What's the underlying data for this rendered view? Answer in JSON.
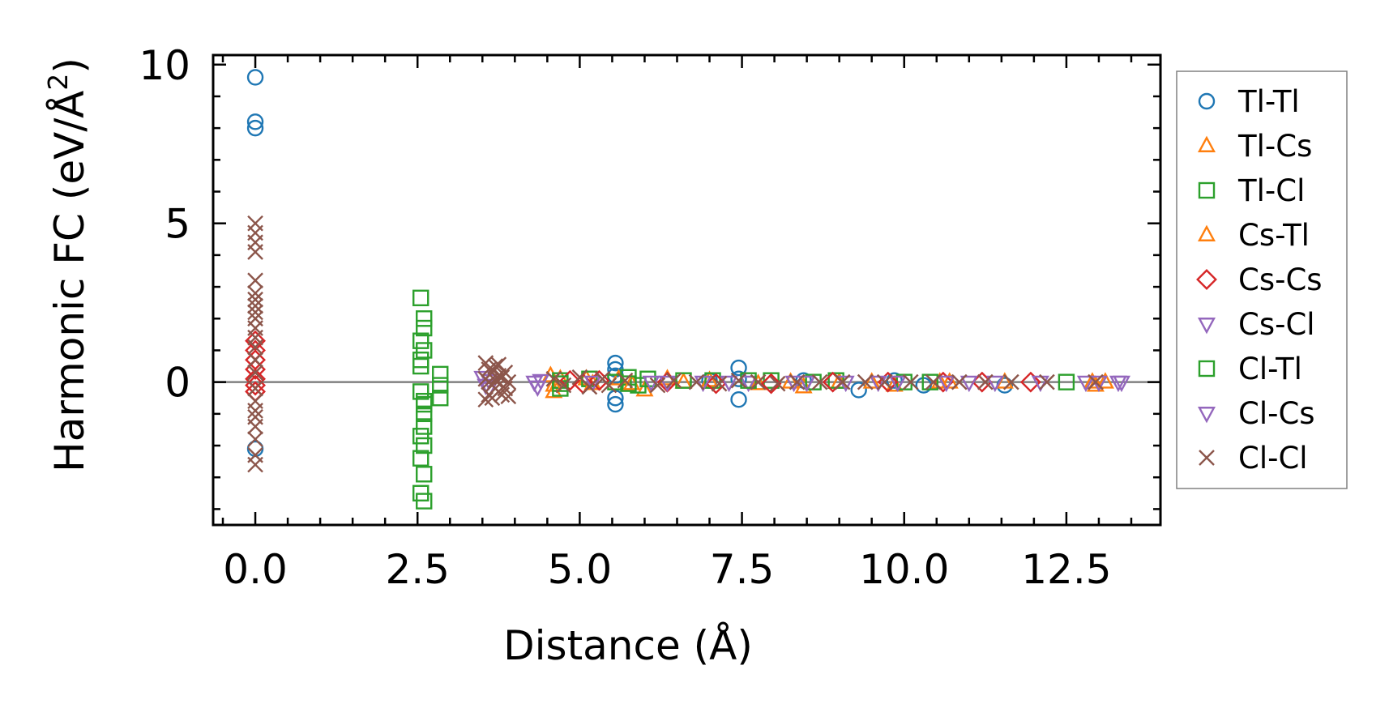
{
  "chart_data": {
    "type": "scatter",
    "xlabel": "Distance (Å)",
    "ylabel": "Harmonic FC (eV/Å²)",
    "ylabel_main": "Harmonic FC (eV/Å",
    "ylabel_sup": "2",
    "ylabel_end": ")",
    "xlim": [
      -0.65,
      13.95
    ],
    "ylim": [
      -4.5,
      10.3
    ],
    "xticks": [
      0.0,
      2.5,
      5.0,
      7.5,
      10.0,
      12.5
    ],
    "xtick_labels": [
      "0.0",
      "2.5",
      "5.0",
      "7.5",
      "10.0",
      "12.5"
    ],
    "yticks": [
      0,
      5,
      10
    ],
    "ytick_labels": [
      "0",
      "5",
      "10"
    ],
    "zero_line": true,
    "grid": false,
    "legend_position": "outside right",
    "series": [
      {
        "name": "Tl-Tl",
        "marker": "circle",
        "color": "#1f77b4",
        "points": [
          [
            0,
            9.6
          ],
          [
            0,
            8.2
          ],
          [
            0,
            8.0
          ],
          [
            0,
            -2.1
          ],
          [
            5.55,
            0.6
          ],
          [
            5.55,
            0.4
          ],
          [
            5.55,
            0.2
          ],
          [
            5.55,
            -0.5
          ],
          [
            5.55,
            -0.7
          ],
          [
            7.45,
            0.45
          ],
          [
            7.45,
            0.1
          ],
          [
            7.45,
            -0.55
          ],
          [
            7.0,
            0.05
          ],
          [
            8.45,
            0.05
          ],
          [
            9.3,
            -0.25
          ],
          [
            9.85,
            0.05
          ],
          [
            10.3,
            -0.1
          ],
          [
            11.55,
            -0.1
          ]
        ]
      },
      {
        "name": "Tl-Cs",
        "marker": "triangle-up",
        "color": "#ff7f0e",
        "points": [
          [
            4.55,
            0.2
          ],
          [
            4.6,
            -0.3
          ],
          [
            4.7,
            0.1
          ],
          [
            5.1,
            0.1
          ],
          [
            5.6,
            0.1
          ],
          [
            6.0,
            -0.25
          ],
          [
            6.35,
            0.1
          ],
          [
            7.0,
            0.05
          ],
          [
            7.75,
            -0.05
          ],
          [
            8.45,
            -0.15
          ],
          [
            9.0,
            0.0
          ],
          [
            9.85,
            -0.1
          ],
          [
            10.55,
            0.0
          ],
          [
            11.55,
            0.0
          ],
          [
            12.95,
            -0.1
          ],
          [
            13.1,
            0.0
          ]
        ]
      },
      {
        "name": "Tl-Cl",
        "marker": "square",
        "color": "#2ca02c",
        "points": [
          [
            2.55,
            2.65
          ],
          [
            2.6,
            2.0
          ],
          [
            2.6,
            1.7
          ],
          [
            2.55,
            1.3
          ],
          [
            2.6,
            1.0
          ],
          [
            2.55,
            0.7
          ],
          [
            2.55,
            -0.3
          ],
          [
            2.6,
            -0.7
          ],
          [
            2.6,
            -1.0
          ],
          [
            2.6,
            -1.4
          ],
          [
            2.55,
            -1.7
          ],
          [
            2.6,
            -2.0
          ],
          [
            2.55,
            -2.4
          ],
          [
            2.6,
            -2.9
          ],
          [
            2.55,
            -3.5
          ],
          [
            2.6,
            -3.75
          ],
          [
            2.85,
            0.25
          ],
          [
            2.85,
            -0.1
          ],
          [
            2.85,
            -0.5
          ],
          [
            4.7,
            0.05
          ],
          [
            4.7,
            -0.2
          ],
          [
            5.15,
            0.1
          ],
          [
            5.55,
            0.0
          ],
          [
            5.75,
            0.15
          ],
          [
            5.9,
            -0.1
          ],
          [
            6.05,
            0.1
          ],
          [
            7.05,
            0.05
          ],
          [
            7.95,
            0.05
          ],
          [
            8.95,
            0.05
          ],
          [
            10.0,
            0.0
          ],
          [
            12.5,
            0.0
          ]
        ]
      },
      {
        "name": "Cs-Tl",
        "marker": "triangle-up",
        "color": "#ff7f0e",
        "points": [
          [
            4.6,
            -0.1
          ],
          [
            5.2,
            -0.05
          ],
          [
            5.8,
            -0.05
          ],
          [
            6.6,
            0.0
          ],
          [
            8.25,
            0.0
          ],
          [
            9.5,
            0.0
          ],
          [
            10.7,
            0.0
          ],
          [
            12.9,
            0.0
          ]
        ]
      },
      {
        "name": "Cs-Cs",
        "marker": "diamond",
        "color": "#d62728",
        "points": [
          [
            0,
            1.3
          ],
          [
            0,
            1.0
          ],
          [
            0,
            0.7
          ],
          [
            0,
            0.4
          ],
          [
            0,
            0.1
          ],
          [
            0,
            -0.1
          ],
          [
            0,
            -0.3
          ],
          [
            4.85,
            0.05
          ],
          [
            5.05,
            -0.05
          ],
          [
            5.3,
            0.05
          ],
          [
            6.35,
            0.0
          ],
          [
            7.1,
            -0.05
          ],
          [
            7.95,
            -0.05
          ],
          [
            8.9,
            0.0
          ],
          [
            9.75,
            0.0
          ],
          [
            10.6,
            0.0
          ],
          [
            11.2,
            0.0
          ],
          [
            11.95,
            0.0
          ]
        ]
      },
      {
        "name": "Cs-Cl",
        "marker": "triangle-down",
        "color": "#9467bd",
        "points": [
          [
            3.5,
            0.15
          ],
          [
            3.55,
            -0.1
          ],
          [
            3.6,
            0.05
          ],
          [
            4.3,
            0.0
          ],
          [
            4.35,
            -0.15
          ],
          [
            6.35,
            0.0
          ],
          [
            6.9,
            0.0
          ],
          [
            7.6,
            0.0
          ],
          [
            8.3,
            0.0
          ],
          [
            9.1,
            0.0
          ],
          [
            9.9,
            0.0
          ],
          [
            10.65,
            0.0
          ],
          [
            11.4,
            0.0
          ],
          [
            12.1,
            0.0
          ],
          [
            13.0,
            0.0
          ],
          [
            13.35,
            0.0
          ]
        ]
      },
      {
        "name": "Cl-Tl",
        "marker": "square",
        "color": "#2ca02c",
        "points": [
          [
            2.55,
            0.5
          ],
          [
            2.6,
            -0.6
          ],
          [
            4.7,
            -0.05
          ],
          [
            5.75,
            -0.05
          ],
          [
            6.6,
            0.05
          ],
          [
            7.6,
            0.05
          ],
          [
            8.6,
            0.0
          ],
          [
            10.4,
            0.0
          ]
        ]
      },
      {
        "name": "Cl-Cs",
        "marker": "triangle-down",
        "color": "#9467bd",
        "points": [
          [
            3.6,
            -0.2
          ],
          [
            4.4,
            0.05
          ],
          [
            5.2,
            0.0
          ],
          [
            6.1,
            0.0
          ],
          [
            7.3,
            0.0
          ],
          [
            8.5,
            0.0
          ],
          [
            9.6,
            0.0
          ],
          [
            11.0,
            0.0
          ],
          [
            12.8,
            0.0
          ],
          [
            13.3,
            0.0
          ]
        ]
      },
      {
        "name": "Cl-Cl",
        "marker": "x",
        "color": "#8c564b",
        "points": [
          [
            0,
            5.0
          ],
          [
            0,
            4.7
          ],
          [
            0,
            4.4
          ],
          [
            0,
            4.1
          ],
          [
            0,
            3.2
          ],
          [
            0,
            2.8
          ],
          [
            0,
            2.6
          ],
          [
            0,
            2.4
          ],
          [
            0,
            2.2
          ],
          [
            0,
            2.0
          ],
          [
            0,
            1.7
          ],
          [
            0,
            1.4
          ],
          [
            0,
            1.1
          ],
          [
            0,
            0.7
          ],
          [
            0,
            0.3
          ],
          [
            0,
            -0.2
          ],
          [
            0,
            -0.6
          ],
          [
            0,
            -0.9
          ],
          [
            0,
            -1.1
          ],
          [
            0,
            -1.4
          ],
          [
            0,
            -1.8
          ],
          [
            0,
            -2.3
          ],
          [
            0,
            -2.6
          ],
          [
            3.55,
            0.6
          ],
          [
            3.6,
            0.4
          ],
          [
            3.65,
            0.3
          ],
          [
            3.7,
            0.5
          ],
          [
            3.75,
            0.2
          ],
          [
            3.55,
            0.1
          ],
          [
            3.6,
            0.0
          ],
          [
            3.65,
            -0.1
          ],
          [
            3.7,
            -0.2
          ],
          [
            3.75,
            -0.3
          ],
          [
            3.6,
            -0.4
          ],
          [
            3.65,
            -0.5
          ],
          [
            3.8,
            -0.4
          ],
          [
            3.85,
            0.3
          ],
          [
            3.9,
            0.0
          ],
          [
            3.85,
            -0.2
          ],
          [
            3.7,
            0.05
          ],
          [
            3.8,
            0.15
          ],
          [
            3.9,
            -0.45
          ],
          [
            3.55,
            -0.55
          ],
          [
            3.75,
            0.55
          ],
          [
            4.6,
            0.1
          ],
          [
            4.75,
            -0.1
          ],
          [
            5.0,
            0.15
          ],
          [
            5.15,
            -0.15
          ],
          [
            5.35,
            0.1
          ],
          [
            5.45,
            -0.1
          ],
          [
            5.7,
            0.05
          ],
          [
            6.2,
            -0.1
          ],
          [
            6.45,
            0.05
          ],
          [
            6.8,
            0.0
          ],
          [
            7.15,
            -0.05
          ],
          [
            7.45,
            0.05
          ],
          [
            7.75,
            0.0
          ],
          [
            8.05,
            -0.05
          ],
          [
            8.35,
            0.0
          ],
          [
            8.7,
            0.0
          ],
          [
            9.05,
            0.0
          ],
          [
            9.4,
            0.0
          ],
          [
            9.7,
            0.0
          ],
          [
            10.1,
            0.0
          ],
          [
            10.45,
            0.0
          ],
          [
            10.85,
            0.0
          ],
          [
            11.25,
            0.0
          ],
          [
            11.65,
            0.0
          ],
          [
            12.2,
            0.0
          ],
          [
            12.95,
            0.0
          ]
        ]
      }
    ]
  }
}
